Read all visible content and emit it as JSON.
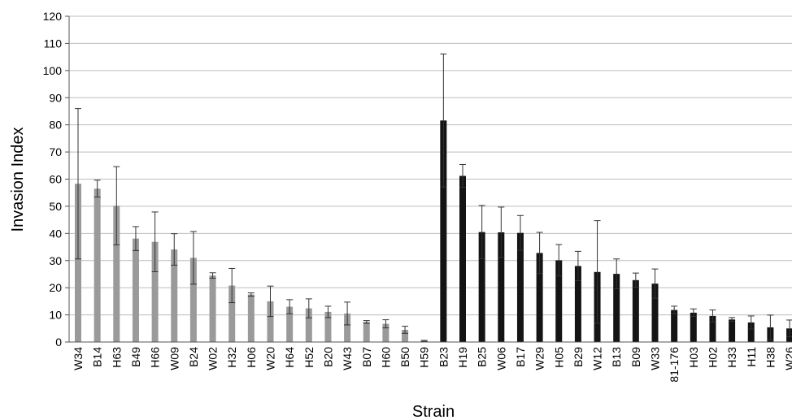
{
  "chart_data": {
    "type": "bar",
    "xlabel": "Strain",
    "ylabel": "Invasion Index",
    "ylim": [
      0,
      120
    ],
    "yticks": [
      0,
      10,
      20,
      30,
      40,
      50,
      60,
      70,
      80,
      90,
      100,
      110,
      120
    ],
    "grid": "horizontal",
    "categories": [
      "W34",
      "B14",
      "H63",
      "B49",
      "H66",
      "W09",
      "B24",
      "W02",
      "H32",
      "H06",
      "W20",
      "H64",
      "H52",
      "B20",
      "W43",
      "B07",
      "H60",
      "B50",
      "H59",
      "B23",
      "H19",
      "B25",
      "W06",
      "B17",
      "W29",
      "H05",
      "B29",
      "W12",
      "B13",
      "B09",
      "W33",
      "81-176",
      "H03",
      "H02",
      "H33",
      "H11",
      "H38",
      "W26"
    ],
    "values": [
      58.3,
      56.5,
      50.2,
      38.1,
      36.9,
      34.1,
      31.0,
      24.5,
      20.8,
      17.5,
      15.0,
      13.0,
      12.4,
      11.1,
      10.5,
      7.4,
      6.7,
      4.5,
      0.4,
      81.6,
      61.2,
      40.5,
      40.4,
      40.2,
      32.8,
      30.1,
      28.0,
      25.8,
      25.1,
      22.8,
      21.5,
      11.8,
      10.8,
      9.6,
      8.3,
      7.2,
      5.4,
      5.0
    ],
    "errors": [
      27.7,
      3.1,
      14.4,
      4.4,
      11.0,
      5.8,
      9.7,
      1.0,
      6.3,
      0.6,
      5.6,
      2.6,
      3.5,
      2.1,
      4.2,
      0.5,
      1.5,
      1.3,
      0.2,
      24.5,
      4.2,
      9.8,
      9.3,
      6.4,
      7.6,
      5.8,
      5.4,
      18.9,
      5.5,
      2.6,
      5.4,
      1.4,
      1.4,
      2.2,
      0.7,
      2.4,
      4.5,
      3.1
    ],
    "group_colors": {
      "light": "#9a9a9a",
      "dark": "#141414"
    },
    "dark_start_index": 19
  }
}
